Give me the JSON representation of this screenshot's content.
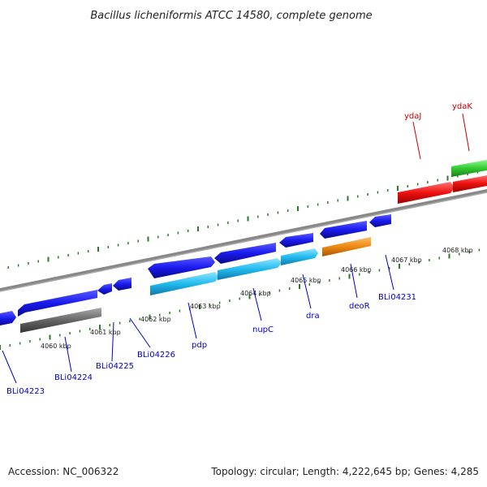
{
  "title": "Bacillus licheniformis ATCC 14580, complete genome",
  "footer": {
    "accession": "Accession: NC_006322",
    "topology": "Topology: circular; Length: 4,222,645 bp; Genes: 4,285"
  },
  "colors": {
    "backbone": "#888888",
    "tick": "#2a7a2a",
    "label_blue": "#0000cc",
    "label_red": "#cc0000",
    "gene_blue": "#1a1aee",
    "gene_cyan": "#22bbee",
    "gene_gray": "#666666",
    "gene_orange": "#ee8811",
    "gene_red": "#ee1111",
    "gene_green": "#33cc33"
  },
  "kbp_labels": [
    "4060 kbp",
    "4061 kbp",
    "4062 kbp",
    "4063 kbp",
    "4064 kbp",
    "4065 kbp",
    "4066 kbp",
    "4067 kbp",
    "4068 kbp"
  ],
  "gene_labels": [
    {
      "text": "BLi04223",
      "color": "blue"
    },
    {
      "text": "BLi04224",
      "color": "blue"
    },
    {
      "text": "BLi04225",
      "color": "blue"
    },
    {
      "text": "BLi04226",
      "color": "blue"
    },
    {
      "text": "pdp",
      "color": "blue"
    },
    {
      "text": "nupC",
      "color": "blue"
    },
    {
      "text": "dra",
      "color": "blue"
    },
    {
      "text": "deoR",
      "color": "blue"
    },
    {
      "text": "BLi04231",
      "color": "blue"
    },
    {
      "text": "ydaJ",
      "color": "red"
    },
    {
      "text": "ydaK",
      "color": "red"
    }
  ]
}
